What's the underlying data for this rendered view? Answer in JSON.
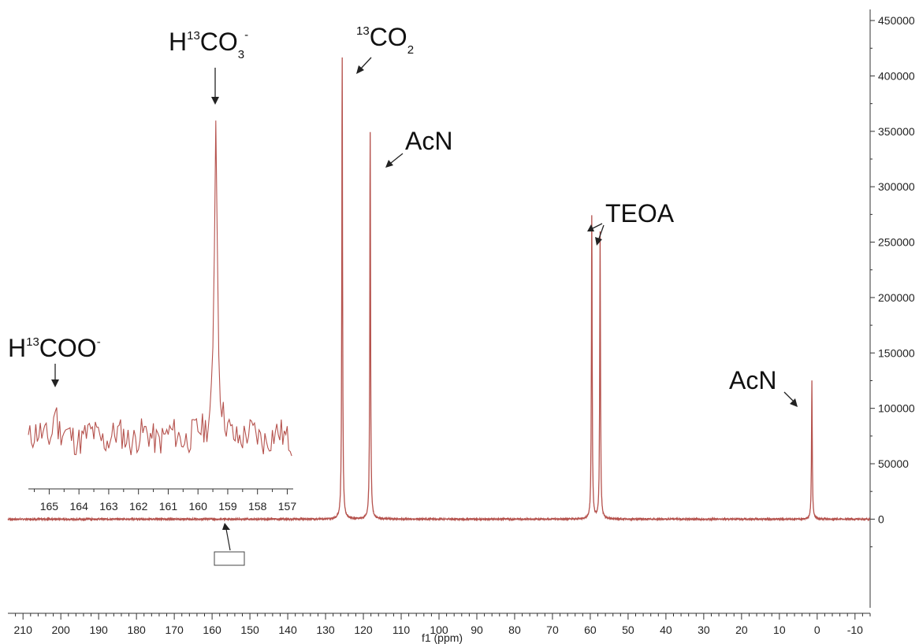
{
  "chart_data": [
    {
      "type": "line",
      "xlabel": "f1 (ppm)",
      "ylabel": "",
      "xlim": [
        214,
        -14
      ],
      "x_reversed": true,
      "ylim": [
        -80000,
        460000
      ],
      "x_ticks": [
        210,
        200,
        190,
        180,
        170,
        160,
        150,
        140,
        130,
        120,
        110,
        100,
        90,
        80,
        70,
        60,
        50,
        40,
        30,
        20,
        10,
        0,
        -10
      ],
      "x_tick_labels": [
        "210",
        "200",
        "190",
        "180",
        "170",
        "160",
        "150",
        "140",
        "130",
        "120",
        "110",
        "100",
        "90",
        "80",
        "70",
        "60",
        "50",
        "40",
        "30",
        "20",
        "10",
        "0",
        "-10"
      ],
      "y_ticks": [
        0,
        50000,
        100000,
        150000,
        200000,
        250000,
        300000,
        350000,
        400000,
        450000
      ],
      "y_tick_labels": [
        "0",
        "50000",
        "100000",
        "150000",
        "200000",
        "250000",
        "300000",
        "350000",
        "400000",
        "450000"
      ],
      "y_axis_side": "right",
      "grid": false,
      "series_color": "#b5524d",
      "peaks": [
        {
          "x": 125.6,
          "y": 416000
        },
        {
          "x": 118.2,
          "y": 349000
        },
        {
          "x": 59.6,
          "y": 274000
        },
        {
          "x": 57.4,
          "y": 259000
        },
        {
          "x": 1.4,
          "y": 125000
        }
      ],
      "annotations": [
        {
          "text": "CO",
          "sup": "13",
          "sub": "2",
          "x": 125.6
        },
        {
          "text": "AcN",
          "x": 118.2
        },
        {
          "text": "TEOA",
          "x": 58.5
        },
        {
          "text": "AcN",
          "x": 1.4
        }
      ]
    },
    {
      "type": "line",
      "inset": true,
      "xlabel": "",
      "xlim": [
        165.7,
        156.8
      ],
      "x_reversed": true,
      "x_ticks": [
        165,
        164,
        163,
        162,
        161,
        160,
        159,
        158,
        157
      ],
      "x_tick_labels": [
        "165",
        "164",
        "163",
        "162",
        "161",
        "160",
        "159",
        "158",
        "157"
      ],
      "series_color": "#b5524d",
      "peaks": [
        {
          "x": 164.8,
          "label": "H¹³COO⁻"
        },
        {
          "x": 159.4,
          "label": "H¹³CO₃⁻"
        }
      ],
      "annotations": [
        {
          "pre": "H",
          "sup": "13",
          "text": "COO",
          "charge": "-",
          "x": 164.8
        },
        {
          "pre": "H",
          "sup": "13",
          "text": "CO",
          "sub": "3",
          "charge": "-",
          "x": 159.4
        }
      ],
      "zoom_region": [
        164.5,
        155.5
      ]
    }
  ]
}
